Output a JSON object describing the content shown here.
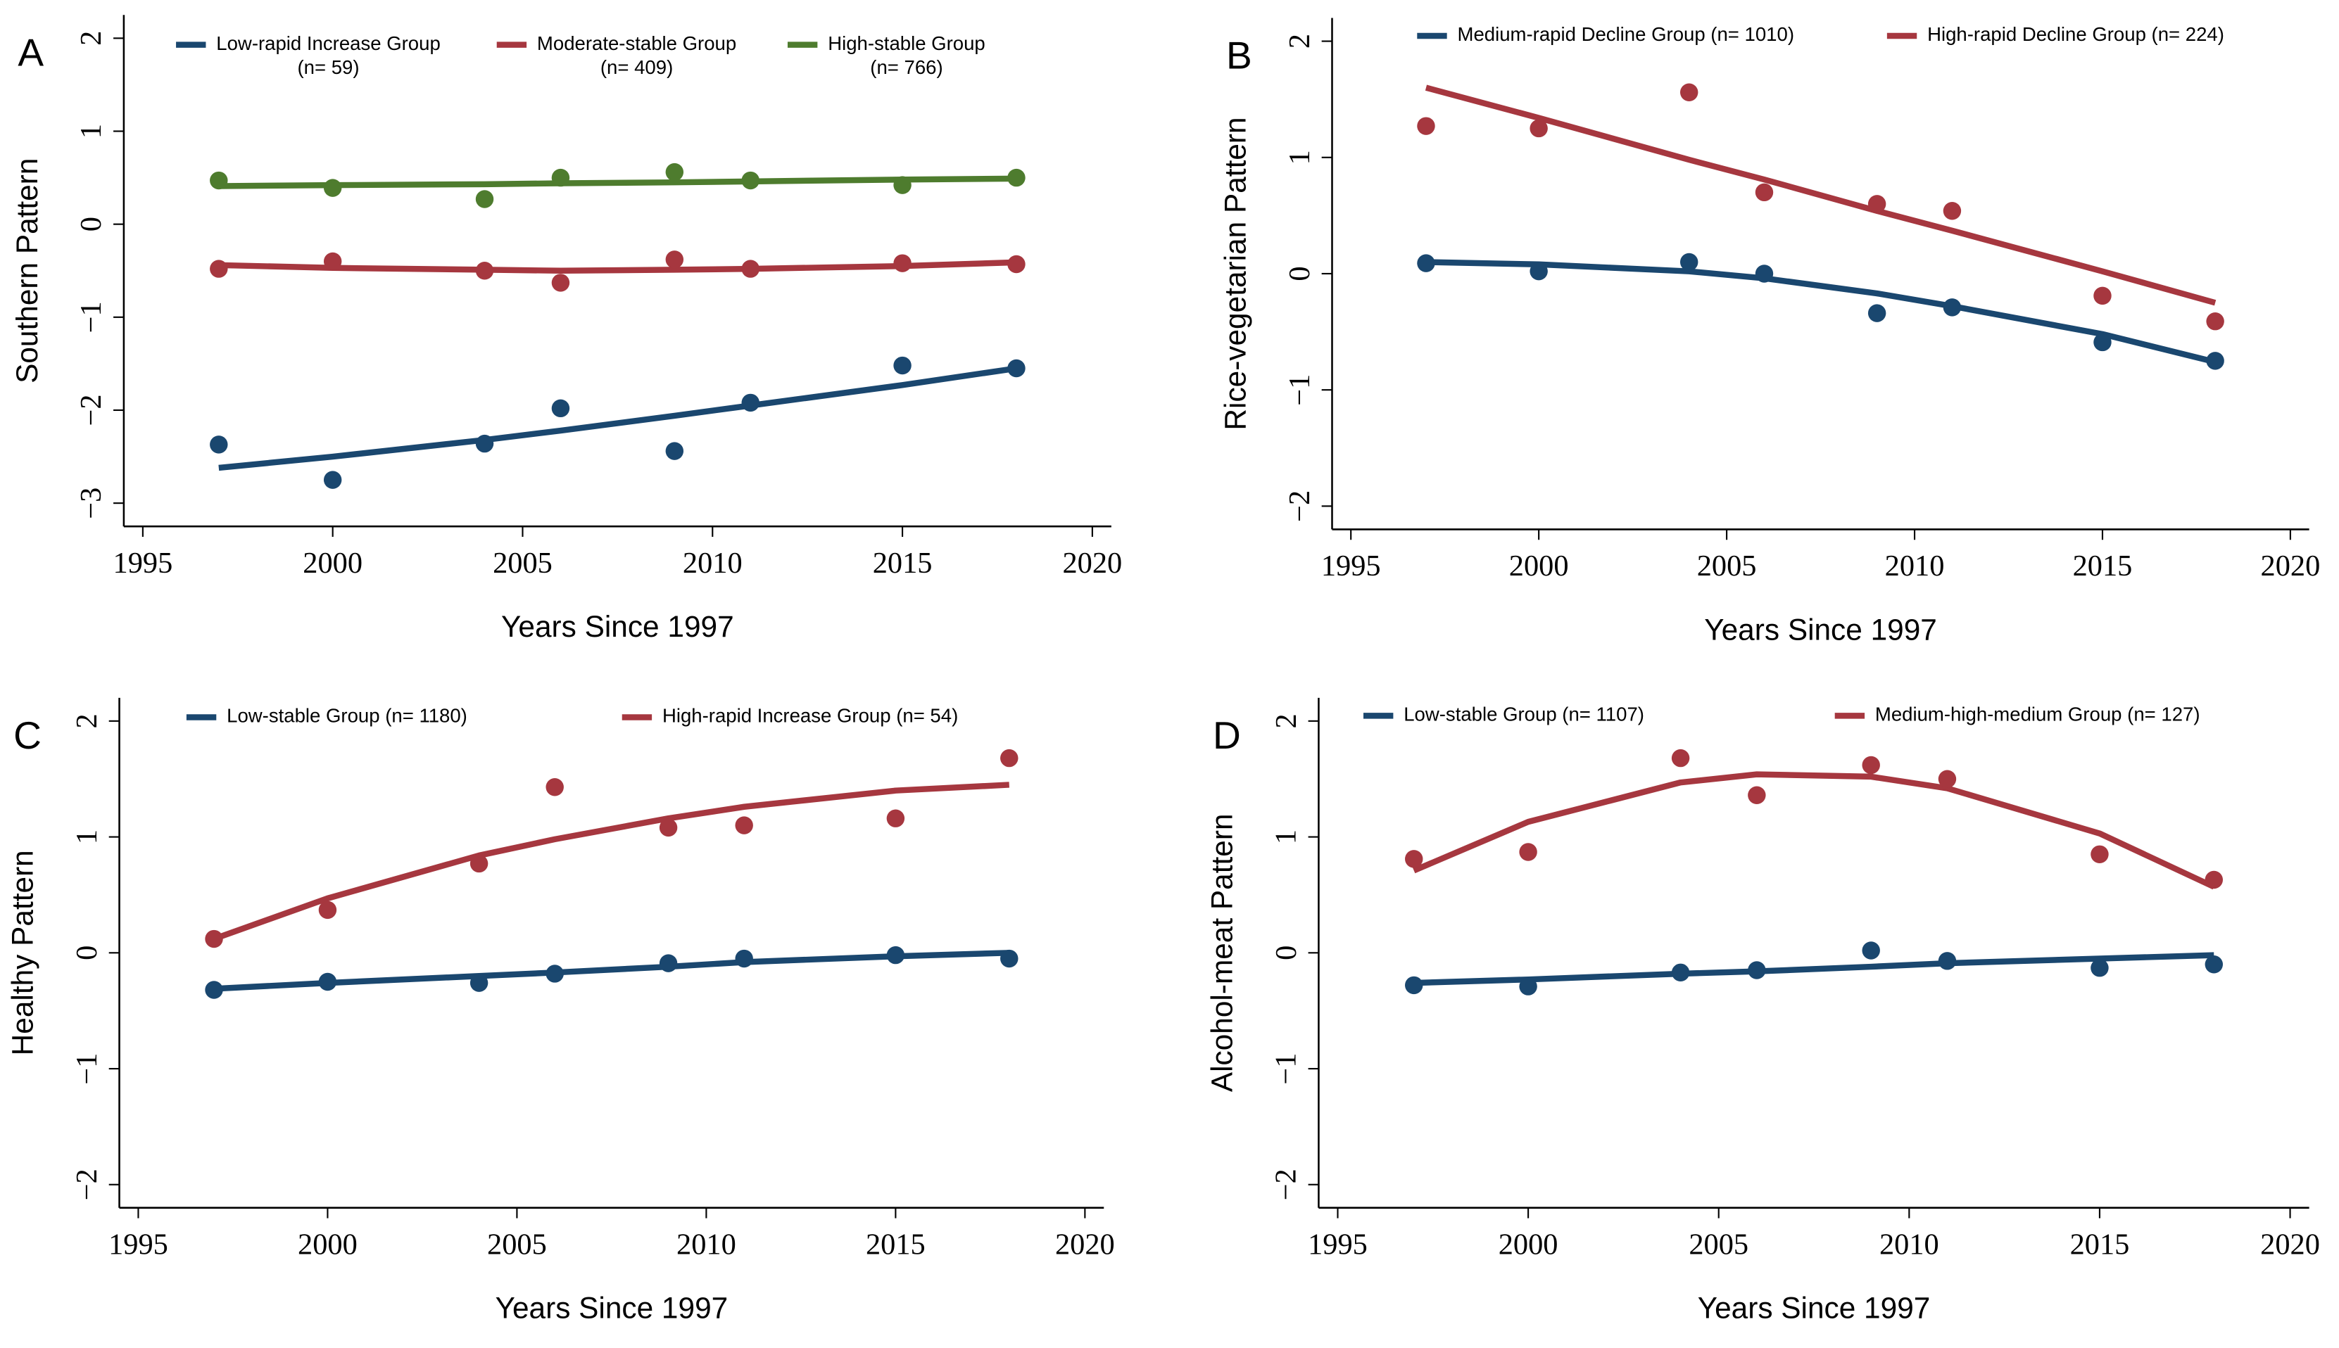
{
  "chart_data": [
    {
      "type": "scatter-fit",
      "panel_label": "A",
      "y_label": "Southern Pattern",
      "x_label": "Years Since 1997",
      "x": [
        1997,
        2000,
        2004,
        2006,
        2009,
        2011,
        2015,
        2018
      ],
      "xlim": [
        1994.5,
        2020.5
      ],
      "xticks": [
        1995,
        2000,
        2005,
        2010,
        2015,
        2020
      ],
      "ylim": [
        -3.25,
        2.25
      ],
      "yticks": [
        {
          "value": -3,
          "label": "−3"
        },
        {
          "value": -2,
          "label": "−2"
        },
        {
          "value": -1,
          "label": "−1"
        },
        0,
        1,
        2
      ],
      "series": [
        {
          "name": "Low-rapid Increase Group",
          "name_line2": "(n= 59)",
          "color": "#1a476f",
          "values": [
            -2.37,
            -2.75,
            -2.36,
            -1.98,
            -2.44,
            -1.92,
            -1.52,
            -1.55
          ],
          "fitted": [
            -2.62,
            -2.5,
            -2.32,
            -2.22,
            -2.06,
            -1.95,
            -1.73,
            -1.55
          ]
        },
        {
          "name": "Moderate-stable Group",
          "name_line2": "(n= 409)",
          "color": "#a6373f",
          "values": [
            -0.48,
            -0.4,
            -0.5,
            -0.63,
            -0.38,
            -0.48,
            -0.42,
            -0.43
          ],
          "fitted": [
            -0.44,
            -0.47,
            -0.49,
            -0.5,
            -0.49,
            -0.48,
            -0.45,
            -0.41
          ]
        },
        {
          "name": "High-stable Group",
          "name_line2": "(n= 766)",
          "color": "#4e7c2e",
          "values": [
            0.47,
            0.39,
            0.27,
            0.5,
            0.56,
            0.47,
            0.42,
            0.5
          ],
          "fitted": [
            0.41,
            0.42,
            0.43,
            0.44,
            0.45,
            0.46,
            0.48,
            0.49
          ]
        }
      ]
    },
    {
      "type": "scatter-fit",
      "panel_label": "B",
      "y_label": "Rice-vegetarian Pattern",
      "x_label": "Years Since 1997",
      "x": [
        1997,
        2000,
        2004,
        2006,
        2009,
        2011,
        2015,
        2018
      ],
      "xlim": [
        1994.5,
        2020.5
      ],
      "xticks": [
        1995,
        2000,
        2005,
        2010,
        2015,
        2020
      ],
      "ylim": [
        -2.2,
        2.2
      ],
      "yticks": [
        {
          "value": -2,
          "label": "−2"
        },
        {
          "value": -1,
          "label": "−1"
        },
        0,
        1,
        2
      ],
      "series": [
        {
          "name": "Medium-rapid Decline Group (n= 1010)",
          "color": "#1a476f",
          "values": [
            0.09,
            0.02,
            0.1,
            0.0,
            -0.34,
            -0.29,
            -0.59,
            -0.75
          ],
          "fitted": [
            0.1,
            0.08,
            0.02,
            -0.04,
            -0.17,
            -0.28,
            -0.52,
            -0.76
          ]
        },
        {
          "name": "High-rapid Decline Group (n= 224)",
          "color": "#a6373f",
          "values": [
            1.27,
            1.25,
            1.56,
            0.7,
            0.6,
            0.54,
            -0.19,
            -0.41
          ],
          "fitted": [
            1.6,
            1.34,
            0.98,
            0.81,
            0.54,
            0.37,
            0.02,
            -0.25
          ]
        }
      ]
    },
    {
      "type": "scatter-fit",
      "panel_label": "C",
      "y_label": "Healthy Pattern",
      "x_label": "Years Since 1997",
      "x": [
        1997,
        2000,
        2004,
        2006,
        2009,
        2011,
        2015,
        2018
      ],
      "xlim": [
        1994.5,
        2020.5
      ],
      "xticks": [
        1995,
        2000,
        2005,
        2010,
        2015,
        2020
      ],
      "ylim": [
        -2.2,
        2.2
      ],
      "yticks": [
        {
          "value": -2,
          "label": "−2"
        },
        {
          "value": -1,
          "label": "−1"
        },
        0,
        1,
        2
      ],
      "series": [
        {
          "name": "Low-stable Group (n= 1180)",
          "color": "#1a476f",
          "values": [
            -0.32,
            -0.25,
            -0.26,
            -0.18,
            -0.09,
            -0.05,
            -0.02,
            -0.05
          ],
          "fitted": [
            -0.31,
            -0.26,
            -0.2,
            -0.17,
            -0.12,
            -0.08,
            -0.03,
            0.0
          ]
        },
        {
          "name": "High-rapid Increase Group (n= 54)",
          "color": "#a6373f",
          "values": [
            0.12,
            0.37,
            0.77,
            1.43,
            1.08,
            1.1,
            1.16,
            1.68
          ],
          "fitted": [
            0.12,
            0.47,
            0.84,
            0.98,
            1.16,
            1.26,
            1.4,
            1.45
          ]
        }
      ]
    },
    {
      "type": "scatter-fit",
      "panel_label": "D",
      "y_label": "Alcohol-meat Pattern",
      "x_label": "Years Since 1997",
      "x": [
        1997,
        2000,
        2004,
        2006,
        2009,
        2011,
        2015,
        2018
      ],
      "xlim": [
        1994.5,
        2020.5
      ],
      "xticks": [
        1995,
        2000,
        2005,
        2010,
        2015,
        2020
      ],
      "ylim": [
        -2.2,
        2.2
      ],
      "yticks": [
        {
          "value": -2,
          "label": "−2"
        },
        {
          "value": -1,
          "label": "−1"
        },
        0,
        1,
        2
      ],
      "series": [
        {
          "name": "Low-stable Group (n= 1107)",
          "color": "#1a476f",
          "values": [
            -0.28,
            -0.29,
            -0.17,
            -0.15,
            0.02,
            -0.07,
            -0.13,
            -0.1
          ],
          "fitted": [
            -0.26,
            -0.23,
            -0.18,
            -0.16,
            -0.12,
            -0.09,
            -0.05,
            -0.02
          ]
        },
        {
          "name": "Medium-high-medium Group (n= 127)",
          "color": "#a6373f",
          "values": [
            0.81,
            0.87,
            1.68,
            1.36,
            1.62,
            1.5,
            0.85,
            0.63
          ],
          "fitted": [
            0.71,
            1.13,
            1.47,
            1.54,
            1.52,
            1.42,
            1.03,
            0.57
          ]
        }
      ]
    }
  ]
}
